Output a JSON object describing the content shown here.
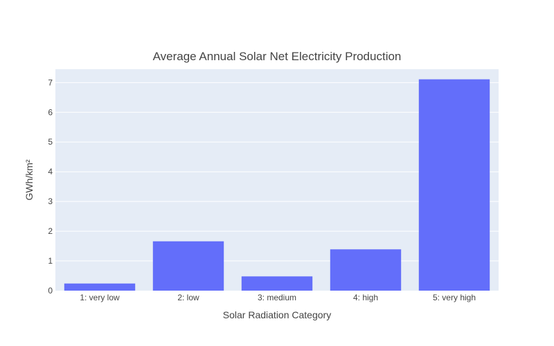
{
  "chart_data": {
    "type": "bar",
    "title": "Average Annual Solar Net Electricity Production",
    "xlabel": "Solar Radiation Category",
    "ylabel": "GWh/km²",
    "categories": [
      "1: very low",
      "2: low",
      "3: medium",
      "4: high",
      "5: very high"
    ],
    "values": [
      0.24,
      1.66,
      0.48,
      1.39,
      7.11
    ],
    "ylim": [
      0,
      7.45
    ],
    "yticks": [
      0,
      1,
      2,
      3,
      4,
      5,
      6,
      7
    ],
    "grid": true,
    "legend": "none",
    "colors": {
      "bar": "#636efa",
      "plot_bg": "#e5ecf6",
      "grid": "#ffffff",
      "text": "#444444"
    }
  }
}
